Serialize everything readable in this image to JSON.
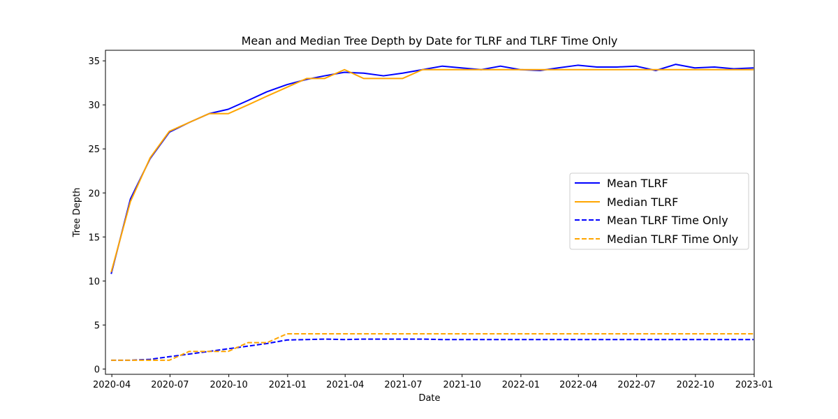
{
  "chart_data": {
    "type": "line",
    "title": "Mean and Median Tree Depth by Date for TLRF and TLRF Time Only",
    "xlabel": "Date",
    "ylabel": "Tree Depth",
    "x_axis_type": "date",
    "xlim": [
      "2020-03-22",
      "2023-01-01"
    ],
    "ylim": [
      -0.6,
      36.2
    ],
    "x_ticks": [
      "2020-04",
      "2020-07",
      "2020-10",
      "2021-01",
      "2021-04",
      "2021-07",
      "2021-10",
      "2022-01",
      "2022-04",
      "2022-07",
      "2022-10",
      "2023-01"
    ],
    "y_ticks": [
      0,
      5,
      10,
      15,
      20,
      25,
      30,
      35
    ],
    "grid": false,
    "legend_position": "center-right",
    "x": [
      "2020-03-31",
      "2020-04-30",
      "2020-05-31",
      "2020-06-30",
      "2020-07-31",
      "2020-08-31",
      "2020-09-30",
      "2020-10-31",
      "2020-11-30",
      "2020-12-31",
      "2021-01-31",
      "2021-02-28",
      "2021-03-31",
      "2021-04-30",
      "2021-05-31",
      "2021-06-30",
      "2021-07-31",
      "2021-08-31",
      "2021-09-30",
      "2021-10-31",
      "2021-11-30",
      "2021-12-31",
      "2022-01-31",
      "2022-02-28",
      "2022-03-31",
      "2022-04-30",
      "2022-05-31",
      "2022-06-30",
      "2022-07-31",
      "2022-08-31",
      "2022-09-30",
      "2022-10-31",
      "2022-11-30",
      "2022-12-31"
    ],
    "series": [
      {
        "name": "Mean TLRF",
        "color": "#0000ff",
        "linestyle": "solid",
        "values": [
          10.8,
          19.3,
          23.9,
          26.9,
          28.0,
          29.0,
          29.5,
          30.5,
          31.5,
          32.3,
          32.9,
          33.3,
          33.7,
          33.6,
          33.3,
          33.6,
          34.0,
          34.4,
          34.2,
          34.0,
          34.4,
          34.0,
          33.9,
          34.2,
          34.5,
          34.3,
          34.3,
          34.4,
          33.9,
          34.6,
          34.2,
          34.3,
          34.1,
          34.2
        ]
      },
      {
        "name": "Median TLRF",
        "color": "#ffa500",
        "linestyle": "solid",
        "values": [
          11.0,
          19.0,
          24.0,
          27.0,
          28.0,
          29.0,
          29.0,
          30.0,
          31.0,
          32.0,
          33.0,
          33.0,
          34.0,
          33.0,
          33.0,
          33.0,
          34.0,
          34.0,
          34.0,
          34.0,
          34.0,
          34.0,
          34.0,
          34.0,
          34.0,
          34.0,
          34.0,
          34.0,
          34.0,
          34.0,
          34.0,
          34.0,
          34.0,
          34.0
        ]
      },
      {
        "name": "Mean TLRF Time Only",
        "color": "#0000ff",
        "linestyle": "dashed",
        "values": [
          1.0,
          1.0,
          1.1,
          1.4,
          1.7,
          2.0,
          2.3,
          2.6,
          2.9,
          3.3,
          3.35,
          3.4,
          3.35,
          3.4,
          3.4,
          3.4,
          3.4,
          3.35,
          3.35,
          3.35,
          3.35,
          3.35,
          3.35,
          3.35,
          3.35,
          3.35,
          3.35,
          3.35,
          3.35,
          3.35,
          3.35,
          3.35,
          3.35,
          3.35
        ]
      },
      {
        "name": "Median TLRF Time Only",
        "color": "#ffa500",
        "linestyle": "dashed",
        "values": [
          1.0,
          1.0,
          1.0,
          1.0,
          2.0,
          2.0,
          2.0,
          3.0,
          3.0,
          4.0,
          4.0,
          4.0,
          4.0,
          4.0,
          4.0,
          4.0,
          4.0,
          4.0,
          4.0,
          4.0,
          4.0,
          4.0,
          4.0,
          4.0,
          4.0,
          4.0,
          4.0,
          4.0,
          4.0,
          4.0,
          4.0,
          4.0,
          4.0,
          4.0
        ]
      }
    ]
  }
}
